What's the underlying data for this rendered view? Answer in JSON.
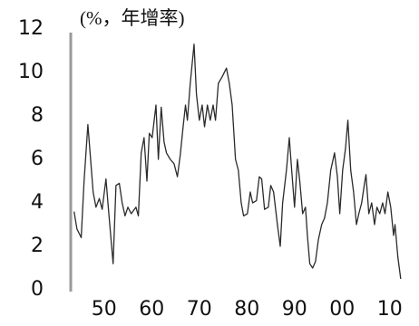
{
  "chart_data": {
    "type": "line",
    "ylabel": "(%，年增率)",
    "x": [
      1943.7,
      1944.3,
      1945.2,
      1945.8,
      1946.6,
      1947.1,
      1947.7,
      1948.3,
      1949.0,
      1949.6,
      1950.4,
      1951.0,
      1951.9,
      1952.5,
      1953.2,
      1953.8,
      1954.4,
      1955.0,
      1955.7,
      1956.7,
      1957.2,
      1957.8,
      1958.4,
      1959.0,
      1959.5,
      1960.1,
      1960.9,
      1961.4,
      1962.0,
      1962.6,
      1963.1,
      1963.9,
      1964.7,
      1965.4,
      1966.0,
      1966.6,
      1967.1,
      1967.5,
      1968.1,
      1968.9,
      1969.4,
      1970.0,
      1970.6,
      1971.1,
      1971.7,
      1972.3,
      1972.9,
      1973.4,
      1974.0,
      1974.8,
      1975.7,
      1976.3,
      1976.9,
      1977.6,
      1978.2,
      1978.8,
      1979.3,
      1980.1,
      1980.7,
      1981.2,
      1982.0,
      1982.6,
      1983.1,
      1983.7,
      1984.5,
      1985.0,
      1985.6,
      1986.4,
      1987.0,
      1987.5,
      1988.3,
      1988.9,
      1989.4,
      1990.0,
      1990.6,
      1991.1,
      1991.7,
      1992.3,
      1992.7,
      1993.2,
      1993.8,
      1994.4,
      1995.0,
      1995.7,
      1996.3,
      1996.9,
      1997.6,
      1998.4,
      1999.0,
      1999.5,
      2000.1,
      2000.7,
      2001.2,
      2001.8,
      2002.4,
      2003.0,
      2003.5,
      2004.1,
      2004.7,
      2005.0,
      2005.6,
      2006.2,
      2006.8,
      2007.3,
      2007.9,
      2008.5,
      2009.0,
      2009.6,
      2010.2,
      2010.8,
      2011.1,
      2011.7,
      2012.3
    ],
    "series": [
      {
        "name": "年增率",
        "color": "#2b2b2b",
        "values": [
          3.6,
          2.8,
          2.4,
          5,
          7.6,
          6.2,
          4.5,
          3.8,
          4.2,
          3.7,
          5.1,
          3.5,
          1.2,
          4.8,
          4.9,
          4,
          3.4,
          3.8,
          3.5,
          3.8,
          3.4,
          6.3,
          7,
          5,
          7.2,
          7,
          8.5,
          6,
          8.4,
          6.8,
          6.3,
          6,
          5.8,
          5.2,
          6.2,
          7.5,
          8.5,
          7.8,
          9.5,
          11.3,
          9,
          7.8,
          8.5,
          7.5,
          8.5,
          7.8,
          8.5,
          7.8,
          9.5,
          9.8,
          10.2,
          9.5,
          8.5,
          6,
          5.5,
          4,
          3.4,
          3.5,
          4.5,
          4,
          4.1,
          5.2,
          5.1,
          3.7,
          3.8,
          4.8,
          4.5,
          3,
          2,
          4,
          5.5,
          7,
          5.5,
          3.8,
          6,
          5,
          3.5,
          3.8,
          2.5,
          1.2,
          1,
          1.3,
          2.3,
          3,
          3.3,
          4,
          5.5,
          6.3,
          5.2,
          3.5,
          5.5,
          6.5,
          7.8,
          5.5,
          4.5,
          3,
          3.5,
          4,
          4.9,
          5.3,
          3.5,
          4,
          3,
          3.8,
          3.5,
          4,
          3.5,
          4.5,
          3.8,
          2.5,
          3,
          1.5,
          0.5
        ]
      }
    ],
    "xlim": [
      1943,
      2012.9
    ],
    "xticks": [
      {
        "value": 1950,
        "label": "50"
      },
      {
        "value": 1960,
        "label": "60"
      },
      {
        "value": 1970,
        "label": "70"
      },
      {
        "value": 1980,
        "label": "80"
      },
      {
        "value": 1990,
        "label": "90"
      },
      {
        "value": 2000,
        "label": "00"
      },
      {
        "value": 2010,
        "label": "10"
      }
    ],
    "ylim": [
      0,
      12
    ],
    "yticks": [
      0,
      2,
      4,
      6,
      8,
      10,
      12
    ],
    "grid": false
  }
}
